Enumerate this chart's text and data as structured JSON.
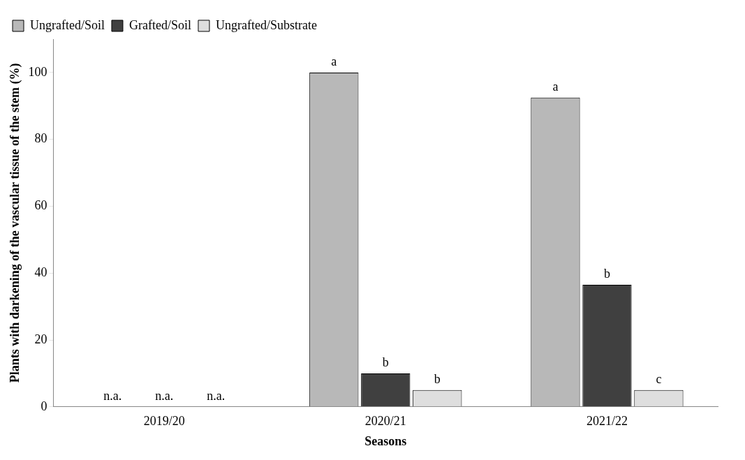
{
  "chart_data": {
    "type": "bar",
    "xlabel": "Seasons",
    "ylabel": "Plants with darkening of the vascular tissue of the stem (%)",
    "categories": [
      "2019/20",
      "2020/21",
      "2021/22"
    ],
    "series": [
      {
        "name": "Ungrafted/Soil",
        "color": "#b8b8b8",
        "values": [
          null,
          100,
          92.5
        ],
        "value_labels": [
          "n.a.",
          "a",
          "a"
        ]
      },
      {
        "name": "Grafted/Soil",
        "color": "#404040",
        "values": [
          null,
          10,
          36.5
        ],
        "value_labels": [
          "n.a.",
          "b",
          "b"
        ]
      },
      {
        "name": "Ungrafted/Substrate",
        "color": "#dedede",
        "values": [
          null,
          5,
          5
        ],
        "value_labels": [
          "n.a.",
          "b",
          "c"
        ]
      }
    ],
    "ylim": [
      0,
      110
    ],
    "yticks": [
      0,
      20,
      40,
      60,
      80,
      100
    ],
    "grid": false,
    "legend": "top left"
  }
}
